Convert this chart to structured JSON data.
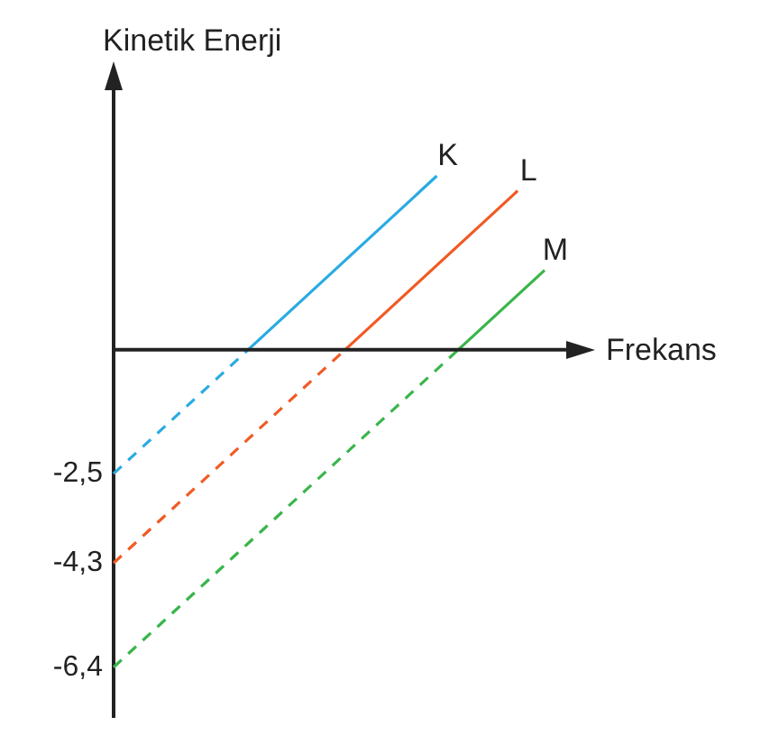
{
  "chart_data": {
    "type": "line",
    "xlabel": "Frekans",
    "ylabel": "Kinetik Enerji",
    "categories": [
      null,
      null,
      null,
      null,
      null,
      null,
      null,
      null,
      null,
      null,
      null,
      null,
      null,
      null,
      null,
      null,
      null,
      null,
      null,
      null,
      null,
      null,
      null,
      null,
      null,
      null,
      null,
      null,
      null,
      null,
      null,
      null,
      null,
      null,
      null,
      null,
      null,
      null,
      null,
      null,
      null,
      null,
      null,
      null,
      null,
      null,
      null,
      null,
      null,
      null,
      null,
      null,
      null,
      null,
      null,
      null,
      null,
      null,
      null,
      null,
      null,
      null,
      null,
      null,
      null,
      null,
      null,
      null,
      null,
      null,
      null,
      null,
      null,
      null,
      null,
      null,
      null,
      null,
      null,
      null,
      null
    ],
    "ylim": [
      -7.4,
      5.3
    ],
    "yticks": [
      {
        "value": -2.5,
        "label": "-2,5"
      },
      {
        "value": -4.3,
        "label": "-4,3"
      },
      {
        "value": -6.4,
        "label": "-6,4"
      }
    ],
    "tick_labels": "y",
    "grid": false,
    "legend": false,
    "marker": "none",
    "series": [
      {
        "color": "#29abe2",
        "line_style": "dashed",
        "values": [
          -2.5,
          -2.4,
          -2.3,
          -2.2,
          -2.1,
          -2,
          -1.9,
          -1.8,
          -1.7,
          -1.6,
          -1.5,
          -1.4,
          -1.3,
          -1.2,
          -1.1,
          -1,
          -0.9,
          -0.8,
          -0.7,
          -0.6,
          -0.5,
          -0.4,
          -0.3,
          -0.2,
          -0.1,
          0,
          null,
          null,
          null,
          null,
          null,
          null,
          null,
          null,
          null,
          null,
          null,
          null,
          null,
          null,
          null,
          null,
          null,
          null,
          null,
          null,
          null,
          null,
          null,
          null,
          null,
          null,
          null,
          null,
          null,
          null,
          null,
          null,
          null,
          null,
          null,
          null,
          null,
          null,
          null,
          null,
          null,
          null,
          null,
          null,
          null,
          null,
          null,
          null,
          null,
          null,
          null,
          null,
          null,
          null,
          null
        ]
      },
      {
        "name": "K",
        "color": "#29abe2",
        "line_style": "solid",
        "values": [
          null,
          null,
          null,
          null,
          null,
          null,
          null,
          null,
          null,
          null,
          null,
          null,
          null,
          null,
          null,
          null,
          null,
          null,
          null,
          null,
          null,
          null,
          null,
          null,
          null,
          0,
          0.1,
          0.2,
          0.3,
          0.4,
          0.5,
          0.6,
          0.7,
          0.8,
          0.9,
          1,
          1.1,
          1.2,
          1.3,
          1.4,
          1.5,
          1.6,
          1.7,
          1.8,
          1.9,
          2,
          2.1,
          2.2,
          2.3,
          2.4,
          2.5,
          2.6,
          2.7,
          2.8,
          2.9,
          3,
          3.1,
          3.2,
          3.3,
          3.4,
          3.5,
          null,
          null,
          null,
          null,
          null,
          null,
          null,
          null,
          null,
          null,
          null,
          null,
          null,
          null,
          null,
          null,
          null,
          null,
          null,
          null
        ]
      },
      {
        "color": "#f15a24",
        "line_style": "dashed",
        "values": [
          -4.3,
          -4.2,
          -4.1,
          -4,
          -3.9,
          -3.8,
          -3.7,
          -3.6,
          -3.5,
          -3.4,
          -3.3,
          -3.2,
          -3.1,
          -3,
          -2.9,
          -2.8,
          -2.7,
          -2.6,
          -2.5,
          -2.4,
          -2.3,
          -2.2,
          -2.1,
          -2,
          -1.9,
          -1.8,
          -1.7,
          -1.6,
          -1.5,
          -1.4,
          -1.3,
          -1.2,
          -1.1,
          -1,
          -0.9,
          -0.8,
          -0.7,
          -0.6,
          -0.5,
          -0.4,
          -0.3,
          -0.2,
          -0.1,
          0,
          null,
          null,
          null,
          null,
          null,
          null,
          null,
          null,
          null,
          null,
          null,
          null,
          null,
          null,
          null,
          null,
          null,
          null,
          null,
          null,
          null,
          null,
          null,
          null,
          null,
          null,
          null,
          null,
          null,
          null,
          null,
          null,
          null,
          null,
          null,
          null,
          null
        ]
      },
      {
        "name": "L",
        "color": "#f15a24",
        "line_style": "solid",
        "values": [
          null,
          null,
          null,
          null,
          null,
          null,
          null,
          null,
          null,
          null,
          null,
          null,
          null,
          null,
          null,
          null,
          null,
          null,
          null,
          null,
          null,
          null,
          null,
          null,
          null,
          null,
          null,
          null,
          null,
          null,
          null,
          null,
          null,
          null,
          null,
          null,
          null,
          null,
          null,
          null,
          null,
          null,
          null,
          0,
          0.1,
          0.2,
          0.3,
          0.4,
          0.5,
          0.6,
          0.7,
          0.8,
          0.9,
          1,
          1.1,
          1.2,
          1.3,
          1.4,
          1.5,
          1.6,
          1.7,
          1.8,
          1.9,
          2,
          2.1,
          2.2,
          2.3,
          2.4,
          2.5,
          2.6,
          2.7,
          2.8,
          2.9,
          3,
          3.1,
          3.2,
          null,
          null,
          null,
          null,
          null
        ]
      },
      {
        "color": "#39b54a",
        "line_style": "dashed",
        "values": [
          -6.4,
          -6.3,
          -6.2,
          -6.1,
          -6,
          -5.9,
          -5.8,
          -5.7,
          -5.6,
          -5.5,
          -5.4,
          -5.3,
          -5.2,
          -5.1,
          -5,
          -4.9,
          -4.8,
          -4.7,
          -4.6,
          -4.5,
          -4.4,
          -4.3,
          -4.2,
          -4.1,
          -4,
          -3.9,
          -3.8,
          -3.7,
          -3.6,
          -3.5,
          -3.4,
          -3.3,
          -3.2,
          -3.1,
          -3,
          -2.9,
          -2.8,
          -2.7,
          -2.6,
          -2.5,
          -2.4,
          -2.3,
          -2.2,
          -2.1,
          -2,
          -1.9,
          -1.8,
          -1.7,
          -1.6,
          -1.5,
          -1.4,
          -1.3,
          -1.2,
          -1.1,
          -1,
          -0.9,
          -0.8,
          -0.7,
          -0.6,
          -0.5,
          -0.4,
          -0.3,
          -0.2,
          -0.1,
          0,
          null,
          null,
          null,
          null,
          null,
          null,
          null,
          null,
          null,
          null,
          null,
          null,
          null,
          null,
          null,
          null
        ]
      },
      {
        "name": "M",
        "color": "#39b54a",
        "line_style": "solid",
        "values": [
          null,
          null,
          null,
          null,
          null,
          null,
          null,
          null,
          null,
          null,
          null,
          null,
          null,
          null,
          null,
          null,
          null,
          null,
          null,
          null,
          null,
          null,
          null,
          null,
          null,
          null,
          null,
          null,
          null,
          null,
          null,
          null,
          null,
          null,
          null,
          null,
          null,
          null,
          null,
          null,
          null,
          null,
          null,
          null,
          null,
          null,
          null,
          null,
          null,
          null,
          null,
          null,
          null,
          null,
          null,
          null,
          null,
          null,
          null,
          null,
          null,
          null,
          null,
          null,
          0,
          0.1,
          0.2,
          0.3,
          0.4,
          0.5,
          0.6,
          0.7,
          0.8,
          0.9,
          1,
          1.1,
          1.2,
          1.3,
          1.4,
          1.5,
          1.6
        ]
      }
    ]
  }
}
